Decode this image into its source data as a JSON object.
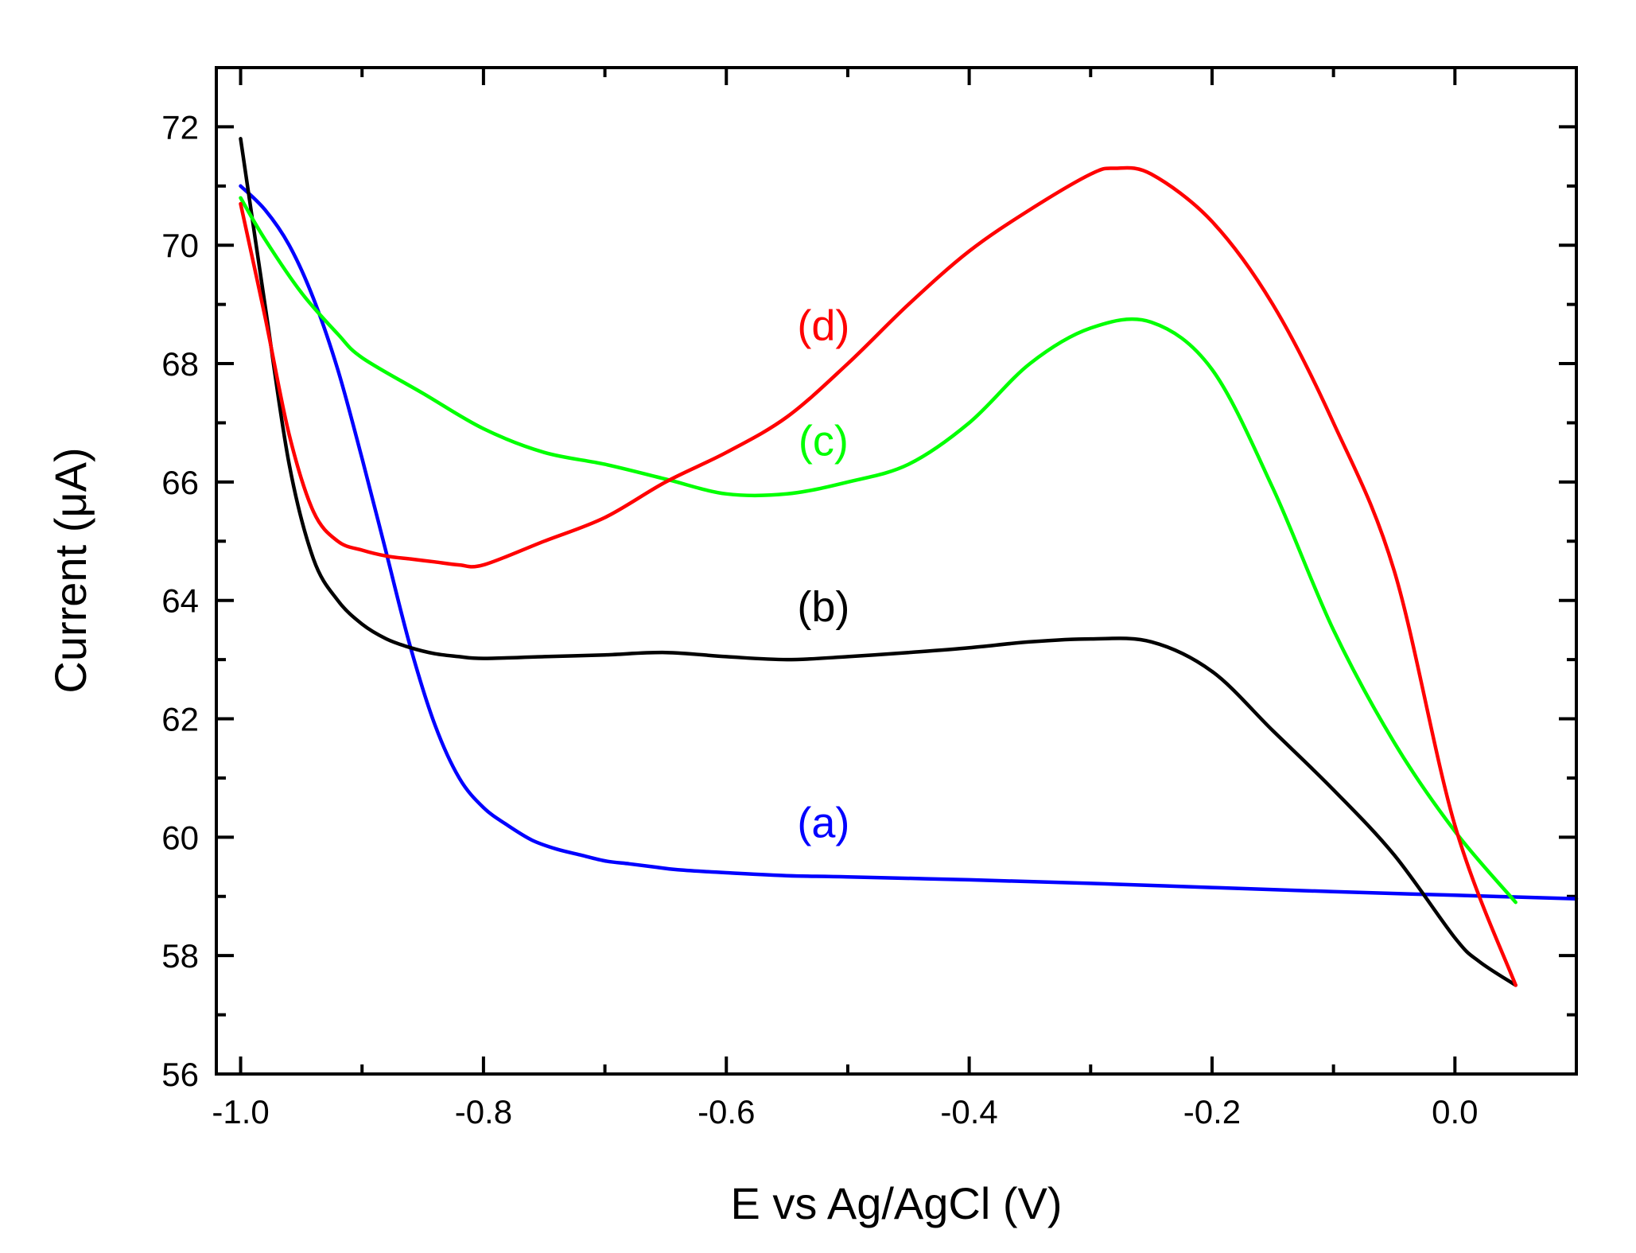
{
  "chart_data": {
    "type": "line",
    "title": "",
    "xlabel": "E vs Ag/AgCl (V)",
    "ylabel": "Current (μA)",
    "xlim": [
      -1.02,
      0.1
    ],
    "ylim": [
      56,
      73
    ],
    "xticks": [
      -1.0,
      -0.8,
      -0.6,
      -0.4,
      -0.2,
      0.0
    ],
    "xtick_labels": [
      "-1.0",
      "-0.8",
      "-0.6",
      "-0.4",
      "-0.2",
      "0.0"
    ],
    "yticks": [
      56,
      58,
      60,
      62,
      64,
      66,
      68,
      70,
      72
    ],
    "ytick_labels": [
      "56",
      "58",
      "60",
      "62",
      "64",
      "66",
      "68",
      "70",
      "72"
    ],
    "grid": false,
    "series": [
      {
        "name": "(a)",
        "color": "#0000ff",
        "label_at": [
          -0.52,
          60.0
        ],
        "x": [
          -1.0,
          -0.98,
          -0.96,
          -0.94,
          -0.92,
          -0.9,
          -0.88,
          -0.86,
          -0.84,
          -0.82,
          -0.8,
          -0.78,
          -0.76,
          -0.74,
          -0.72,
          -0.7,
          -0.68,
          -0.66,
          -0.64,
          -0.6,
          -0.55,
          -0.5,
          -0.4,
          -0.3,
          -0.2,
          -0.1,
          0.0,
          0.1
        ],
        "y": [
          71.0,
          70.6,
          70.0,
          69.1,
          67.9,
          66.4,
          64.8,
          63.2,
          61.9,
          61.0,
          60.5,
          60.2,
          59.95,
          59.8,
          59.7,
          59.6,
          59.55,
          59.5,
          59.45,
          59.4,
          59.35,
          59.33,
          59.28,
          59.22,
          59.15,
          59.08,
          59.02,
          58.96
        ]
      },
      {
        "name": "(b)",
        "color": "#000000",
        "label_at": [
          -0.52,
          63.65
        ],
        "x": [
          -1.0,
          -0.98,
          -0.96,
          -0.94,
          -0.92,
          -0.9,
          -0.88,
          -0.86,
          -0.84,
          -0.82,
          -0.8,
          -0.75,
          -0.7,
          -0.65,
          -0.6,
          -0.55,
          -0.5,
          -0.45,
          -0.4,
          -0.35,
          -0.3,
          -0.25,
          -0.2,
          -0.15,
          -0.1,
          -0.05,
          0.0,
          0.02,
          0.05
        ],
        "y": [
          71.8,
          69.0,
          66.3,
          64.7,
          64.0,
          63.6,
          63.35,
          63.2,
          63.1,
          63.05,
          63.02,
          63.05,
          63.08,
          63.12,
          63.05,
          63.0,
          63.05,
          63.12,
          63.2,
          63.3,
          63.35,
          63.3,
          62.8,
          61.8,
          60.8,
          59.7,
          58.3,
          57.9,
          57.5
        ]
      },
      {
        "name": "(c)",
        "color": "#00ff00",
        "label_at": [
          -0.52,
          66.45
        ],
        "x": [
          -1.0,
          -0.98,
          -0.95,
          -0.92,
          -0.9,
          -0.85,
          -0.8,
          -0.75,
          -0.7,
          -0.65,
          -0.6,
          -0.55,
          -0.5,
          -0.45,
          -0.4,
          -0.35,
          -0.3,
          -0.25,
          -0.2,
          -0.15,
          -0.1,
          -0.05,
          0.0,
          0.05
        ],
        "y": [
          70.8,
          70.1,
          69.2,
          68.5,
          68.1,
          67.5,
          66.9,
          66.5,
          66.3,
          66.05,
          65.8,
          65.8,
          66.0,
          66.3,
          67.0,
          68.0,
          68.6,
          68.7,
          67.9,
          65.9,
          63.5,
          61.6,
          60.1,
          58.9
        ]
      },
      {
        "name": "(d)",
        "color": "#ff0000",
        "label_at": [
          -0.52,
          68.4
        ],
        "x": [
          -1.0,
          -0.98,
          -0.96,
          -0.94,
          -0.92,
          -0.9,
          -0.88,
          -0.86,
          -0.84,
          -0.82,
          -0.8,
          -0.75,
          -0.7,
          -0.65,
          -0.6,
          -0.55,
          -0.5,
          -0.45,
          -0.4,
          -0.35,
          -0.3,
          -0.28,
          -0.25,
          -0.2,
          -0.15,
          -0.1,
          -0.05,
          0.0,
          0.05
        ],
        "y": [
          70.7,
          68.8,
          66.8,
          65.5,
          65.0,
          64.85,
          64.75,
          64.7,
          64.65,
          64.6,
          64.6,
          65.0,
          65.4,
          66.0,
          66.5,
          67.1,
          68.0,
          69.0,
          69.9,
          70.6,
          71.2,
          71.3,
          71.2,
          70.4,
          69.0,
          67.0,
          64.5,
          60.2,
          57.5
        ]
      }
    ]
  }
}
